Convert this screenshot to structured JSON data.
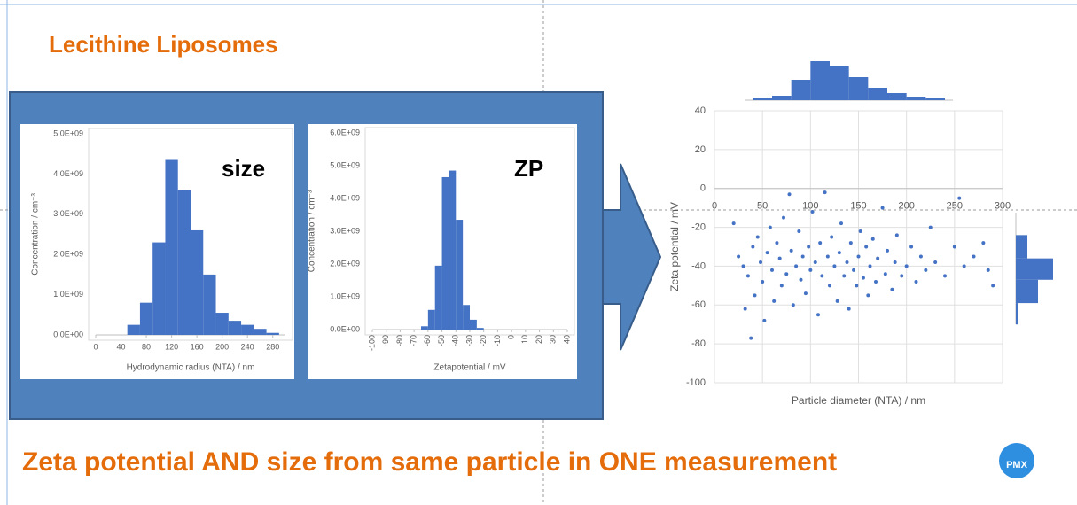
{
  "slide": {
    "title": "Lecithine Liposomes",
    "caption": "Zeta potential AND size from same particle in ONE measurement",
    "size_label": "size",
    "zp_label": "ZP",
    "logo": "PMX"
  },
  "chart_data": [
    {
      "type": "histogram",
      "xlabel": "Hydrodynamic radius (NTA) / nm",
      "ylabel": "Concentration / cm⁻³",
      "color": "#4472c4",
      "bins": [
        50,
        70,
        90,
        110,
        130,
        150,
        170,
        190,
        210,
        230,
        250,
        270,
        290
      ],
      "values": [
        250000000,
        800000000,
        2300000000,
        4350000000,
        3600000000,
        2600000000,
        1500000000,
        550000000,
        350000000,
        250000000,
        150000000,
        50000000
      ],
      "xlim": [
        0,
        300
      ],
      "xticks": [
        0,
        40,
        80,
        120,
        160,
        200,
        240,
        280
      ],
      "ylim": [
        0,
        5000000000
      ],
      "yticks": [
        {
          "value": 0,
          "label": "0.0E+00"
        },
        {
          "value": 1000000000,
          "label": "1.0E+09"
        },
        {
          "value": 2000000000,
          "label": "2.0E+09"
        },
        {
          "value": 3000000000,
          "label": "3.0E+09"
        },
        {
          "value": 4000000000,
          "label": "4.0E+09"
        },
        {
          "value": 5000000000,
          "label": "5.0E+09"
        }
      ]
    },
    {
      "type": "histogram",
      "xlabel": "Zetapotential / mV",
      "ylabel": "Concentration / cm⁻³",
      "color": "#4472c4",
      "xtick_rotation": -90,
      "bins": [
        -65,
        -60,
        -55,
        -50,
        -45,
        -40,
        -35,
        -30,
        -25,
        -20
      ],
      "values": [
        100000000,
        600000000,
        1950000000,
        4650000000,
        4850000000,
        3350000000,
        750000000,
        300000000,
        50000000
      ],
      "xlim": [
        -100,
        40
      ],
      "xticks": [
        -100,
        -90,
        -80,
        -70,
        -60,
        -50,
        -40,
        -30,
        -20,
        -10,
        0,
        10,
        20,
        30,
        40
      ],
      "ylim": [
        0,
        6000000000
      ],
      "yticks": [
        {
          "value": 0,
          "label": "0.0E+00"
        },
        {
          "value": 1000000000,
          "label": "1.0E+09"
        },
        {
          "value": 2000000000,
          "label": "2.0E+09"
        },
        {
          "value": 3000000000,
          "label": "3.0E+09"
        },
        {
          "value": 4000000000,
          "label": "4.0E+09"
        },
        {
          "value": 5000000000,
          "label": "5.0E+09"
        },
        {
          "value": 6000000000,
          "label": "6.0E+09"
        }
      ]
    },
    {
      "type": "scatter",
      "xlabel": "Particle diameter (NTA) / nm",
      "ylabel": "Zeta potential / mV",
      "color": "#4472c4",
      "grid": true,
      "x": [
        20,
        25,
        30,
        32,
        35,
        38,
        40,
        42,
        45,
        48,
        50,
        52,
        55,
        58,
        60,
        62,
        65,
        68,
        70,
        72,
        75,
        78,
        80,
        82,
        85,
        88,
        90,
        92,
        95,
        98,
        100,
        102,
        105,
        108,
        110,
        112,
        115,
        118,
        120,
        122,
        125,
        128,
        130,
        132,
        135,
        138,
        140,
        142,
        145,
        148,
        150,
        152,
        155,
        158,
        160,
        162,
        165,
        168,
        170,
        175,
        178,
        180,
        185,
        188,
        190,
        195,
        200,
        205,
        210,
        215,
        220,
        225,
        230,
        240,
        250,
        255,
        260,
        270,
        280,
        285,
        290
      ],
      "y": [
        -18,
        -35,
        -40,
        -62,
        -45,
        -77,
        -30,
        -55,
        -25,
        -38,
        -48,
        -68,
        -33,
        -20,
        -42,
        -58,
        -28,
        -36,
        -50,
        -15,
        -44,
        -3,
        -32,
        -60,
        -40,
        -22,
        -47,
        -35,
        -54,
        -30,
        -42,
        -12,
        -38,
        -65,
        -28,
        -45,
        -2,
        -35,
        -50,
        -25,
        -40,
        -58,
        -33,
        -18,
        -45,
        -38,
        -62,
        -28,
        -42,
        -50,
        -35,
        -22,
        -46,
        -30,
        -55,
        -40,
        -26,
        -48,
        -36,
        -10,
        -44,
        -32,
        -52,
        -38,
        -24,
        -45,
        -40,
        -30,
        -48,
        -35,
        -42,
        -20,
        -38,
        -45,
        -30,
        -5,
        -40,
        -35,
        -28,
        -42,
        -50
      ],
      "xlim": [
        0,
        300
      ],
      "xticks": [
        0,
        50,
        100,
        150,
        200,
        250,
        300
      ],
      "ylim": [
        -100,
        40
      ],
      "yticks": [
        -100,
        -80,
        -60,
        -40,
        -20,
        0,
        20,
        40
      ]
    },
    {
      "type": "histogram",
      "orientation": "vertical",
      "color": "#4472c4",
      "bins": [
        40,
        60,
        80,
        100,
        120,
        140,
        160,
        180,
        200,
        220,
        240
      ],
      "values": [
        2,
        5,
        23,
        44,
        38,
        26,
        14,
        8,
        3,
        2
      ]
    },
    {
      "type": "histogram",
      "orientation": "horizontal",
      "color": "#4472c4",
      "bins": [
        -70,
        -59,
        -47,
        -36,
        -24
      ],
      "values": [
        3,
        25,
        42,
        13
      ]
    }
  ]
}
